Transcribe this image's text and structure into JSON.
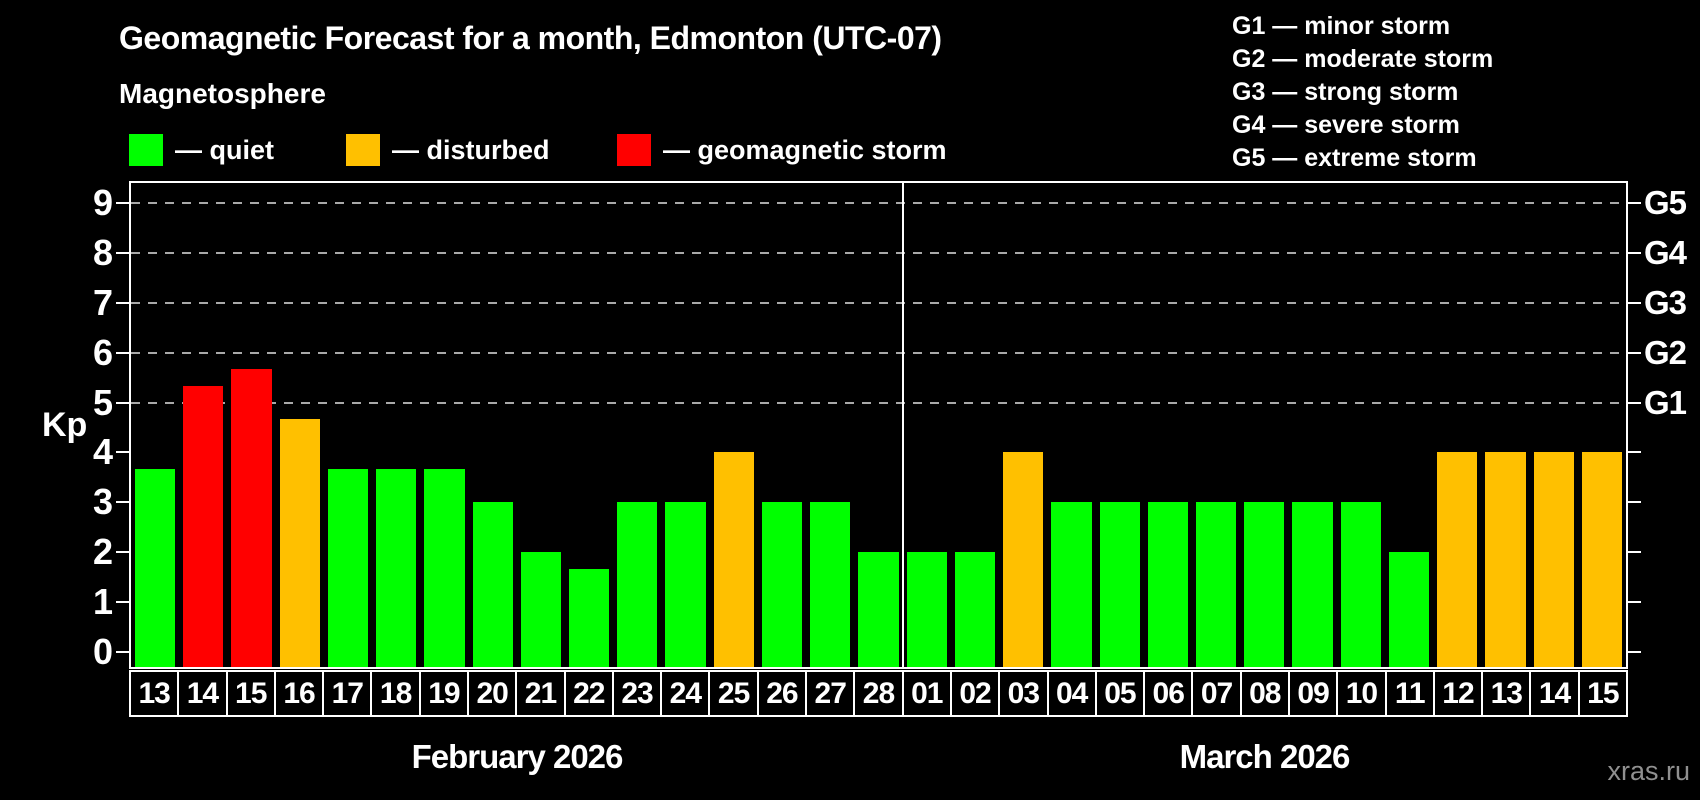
{
  "header": {
    "title": "Geomagnetic Forecast for a month, Edmonton (UTC-07)",
    "subtitle": "Magnetosphere"
  },
  "legend": {
    "items": [
      {
        "name": "quiet",
        "label": "— quiet",
        "color": "#00ff00"
      },
      {
        "name": "disturbed",
        "label": "— disturbed",
        "color": "#ffc000"
      },
      {
        "name": "storm",
        "label": "— geomagnetic storm",
        "color": "#ff0000"
      }
    ]
  },
  "storm_scale": {
    "items": [
      {
        "code": "G1",
        "label": "G1 — minor storm"
      },
      {
        "code": "G2",
        "label": "G2 — moderate storm"
      },
      {
        "code": "G3",
        "label": "G3 — strong storm"
      },
      {
        "code": "G4",
        "label": "G4 — severe storm"
      },
      {
        "code": "G5",
        "label": "G5 — extreme storm"
      }
    ]
  },
  "watermark": "xras.ru",
  "chart_data": {
    "type": "bar",
    "title": "Geomagnetic Forecast for a month, Edmonton (UTC-07)",
    "ylabel": "Kp",
    "ylim": [
      -0.3,
      9.4
    ],
    "grid": "dashed horizontal at Kp 5-9 only",
    "yticks_left": [
      0,
      1,
      2,
      3,
      4,
      5,
      6,
      7,
      8,
      9
    ],
    "gridlines": [
      5,
      6,
      7,
      8,
      9
    ],
    "right_axis": [
      {
        "kp": 5,
        "label": "G1"
      },
      {
        "kp": 6,
        "label": "G2"
      },
      {
        "kp": 7,
        "label": "G3"
      },
      {
        "kp": 8,
        "label": "G4"
      },
      {
        "kp": 9,
        "label": "G5"
      }
    ],
    "status_colors": {
      "quiet": "#00ff00",
      "disturbed": "#ffc000",
      "storm": "#ff0000"
    },
    "months": [
      {
        "label": "February 2026",
        "days": [
          {
            "day": "13",
            "kp": 3.67,
            "status": "quiet"
          },
          {
            "day": "14",
            "kp": 5.33,
            "status": "storm"
          },
          {
            "day": "15",
            "kp": 5.67,
            "status": "storm"
          },
          {
            "day": "16",
            "kp": 4.67,
            "status": "disturbed"
          },
          {
            "day": "17",
            "kp": 3.67,
            "status": "quiet"
          },
          {
            "day": "18",
            "kp": 3.67,
            "status": "quiet"
          },
          {
            "day": "19",
            "kp": 3.67,
            "status": "quiet"
          },
          {
            "day": "20",
            "kp": 3,
            "status": "quiet"
          },
          {
            "day": "21",
            "kp": 2,
            "status": "quiet"
          },
          {
            "day": "22",
            "kp": 1.67,
            "status": "quiet"
          },
          {
            "day": "23",
            "kp": 3,
            "status": "quiet"
          },
          {
            "day": "24",
            "kp": 3,
            "status": "quiet"
          },
          {
            "day": "25",
            "kp": 4,
            "status": "disturbed"
          },
          {
            "day": "26",
            "kp": 3,
            "status": "quiet"
          },
          {
            "day": "27",
            "kp": 3,
            "status": "quiet"
          },
          {
            "day": "28",
            "kp": 2,
            "status": "quiet"
          }
        ]
      },
      {
        "label": "March 2026",
        "days": [
          {
            "day": "01",
            "kp": 2,
            "status": "quiet"
          },
          {
            "day": "02",
            "kp": 2,
            "status": "quiet"
          },
          {
            "day": "03",
            "kp": 4,
            "status": "disturbed"
          },
          {
            "day": "04",
            "kp": 3,
            "status": "quiet"
          },
          {
            "day": "05",
            "kp": 3,
            "status": "quiet"
          },
          {
            "day": "06",
            "kp": 3,
            "status": "quiet"
          },
          {
            "day": "07",
            "kp": 3,
            "status": "quiet"
          },
          {
            "day": "08",
            "kp": 3,
            "status": "quiet"
          },
          {
            "day": "09",
            "kp": 3,
            "status": "quiet"
          },
          {
            "day": "10",
            "kp": 3,
            "status": "quiet"
          },
          {
            "day": "11",
            "kp": 2,
            "status": "quiet"
          },
          {
            "day": "12",
            "kp": 4,
            "status": "disturbed"
          },
          {
            "day": "13",
            "kp": 4,
            "status": "disturbed"
          },
          {
            "day": "14",
            "kp": 4,
            "status": "disturbed"
          },
          {
            "day": "15",
            "kp": 4,
            "status": "disturbed"
          }
        ]
      }
    ]
  }
}
